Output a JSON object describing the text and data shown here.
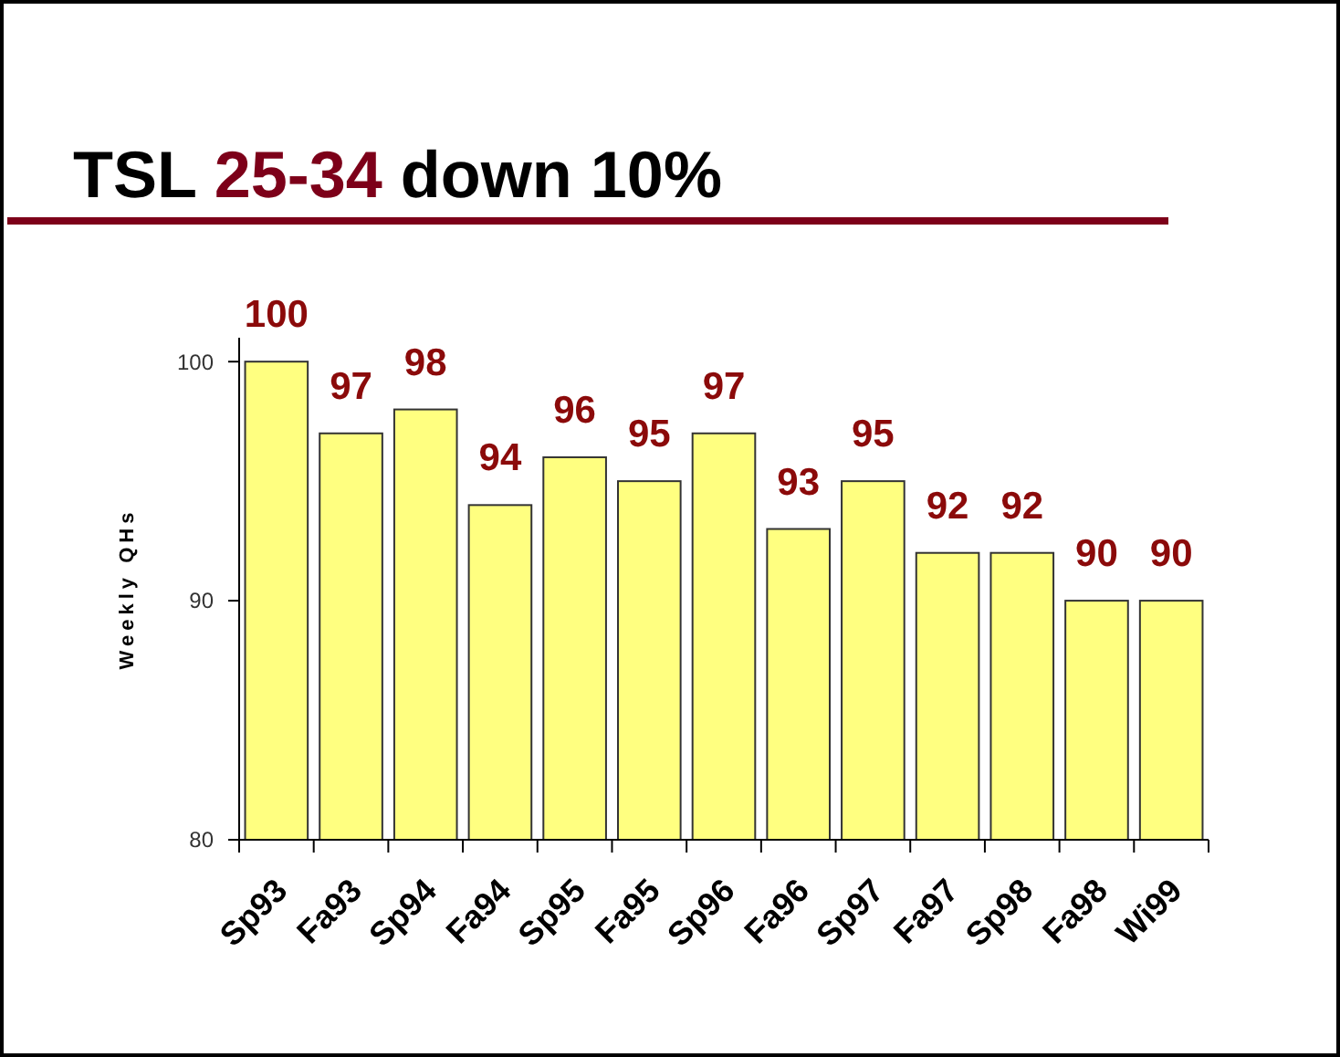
{
  "chart_data": {
    "type": "bar",
    "title": "TSL 25-34 down 10%",
    "ylabel": "Weekly QHs",
    "categories": [
      "Sp93",
      "Fa93",
      "Sp94",
      "Fa94",
      "Sp95",
      "Fa95",
      "Sp96",
      "Fa96",
      "Sp97",
      "Fa97",
      "Sp98",
      "Fa98",
      "Wi99"
    ],
    "values": [
      100,
      97,
      98,
      94,
      96,
      95,
      97,
      93,
      95,
      92,
      92,
      90,
      90
    ],
    "color": "#ffff80",
    "ylim": [
      80,
      101
    ],
    "yticks": [
      80,
      90,
      100
    ],
    "data_labels": true
  }
}
